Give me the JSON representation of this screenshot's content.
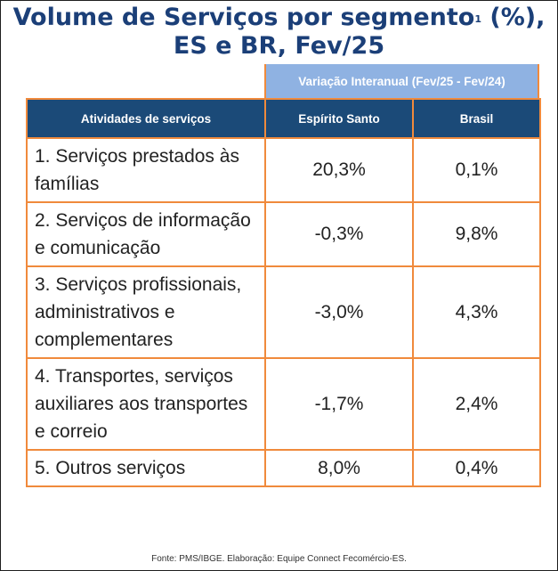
{
  "title": {
    "main": "Volume de Serviços por segmento",
    "footnote": "1",
    "suffix": " (%),",
    "line2": "ES e BR, Fev/25"
  },
  "chart_data": {
    "type": "table",
    "header_band": "Variação Interanual (Fev/25 - Fev/24)",
    "columns": [
      "Atividades de serviços",
      "Espírito Santo",
      "Brasil"
    ],
    "rows": [
      {
        "label": "1. Serviços prestados às famílias",
        "es": "20,3%",
        "br": "0,1%"
      },
      {
        "label": "2. Serviços de informação e comunicação",
        "es": "-0,3%",
        "br": "9,8%"
      },
      {
        "label": "3. Serviços profissionais, administrativos e complementares",
        "es": "-3,0%",
        "br": "4,3%"
      },
      {
        "label": "4. Transportes, serviços auxiliares aos transportes e correio",
        "es": "-1,7%",
        "br": "2,4%"
      },
      {
        "label": "5. Outros serviços",
        "es": "8,0%",
        "br": "0,4%"
      }
    ]
  },
  "source": "Fonte: PMS/IBGE.  Elaboração: Equipe Connect Fecomércio-ES.",
  "colors": {
    "title": "#1b3f78",
    "header_bg": "#1b4a78",
    "band_bg": "#8fb2e2",
    "border": "#f08a3c"
  }
}
